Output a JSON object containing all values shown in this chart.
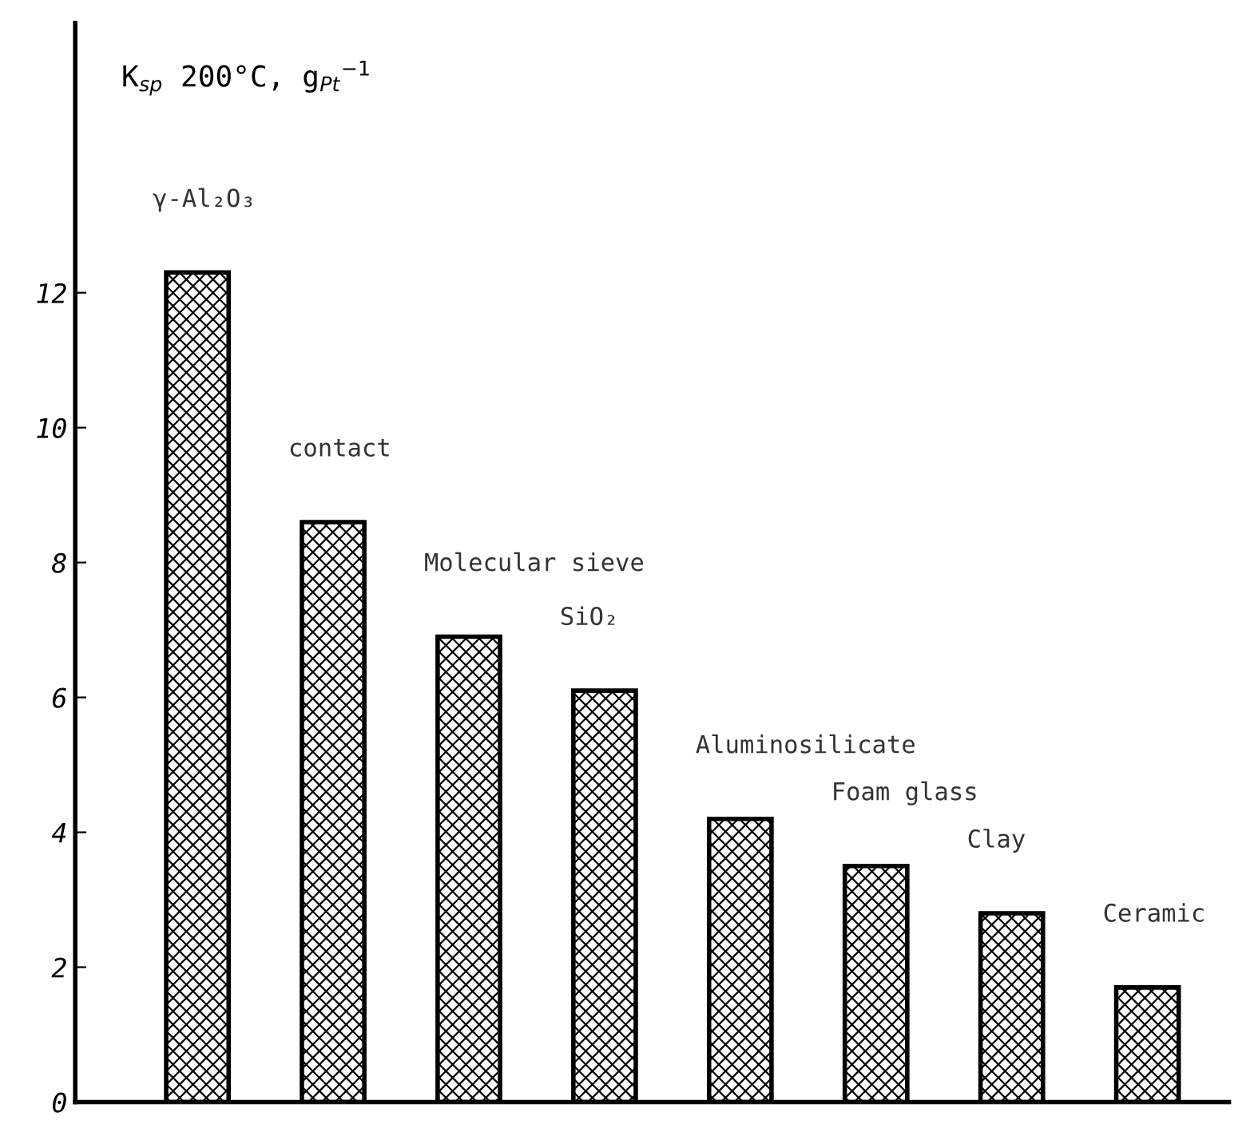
{
  "chart_data": {
    "type": "bar",
    "ylabel": "K$_{sp}$ 200°C, g$_{Pt}$$^{−1}$",
    "categories": [
      "γ-Al₂O₃",
      "contact",
      "Molecular sieve",
      "SiO₂",
      "Aluminosilicate",
      "Foam glass",
      "Clay",
      "Ceramic"
    ],
    "values": [
      12.3,
      8.6,
      6.9,
      6.1,
      4.2,
      3.5,
      2.8,
      1.7
    ],
    "color": "#000000",
    "ylim": [
      0,
      16
    ],
    "yticks": [
      0,
      2,
      4,
      6,
      8,
      10,
      12
    ],
    "grid": false
  }
}
